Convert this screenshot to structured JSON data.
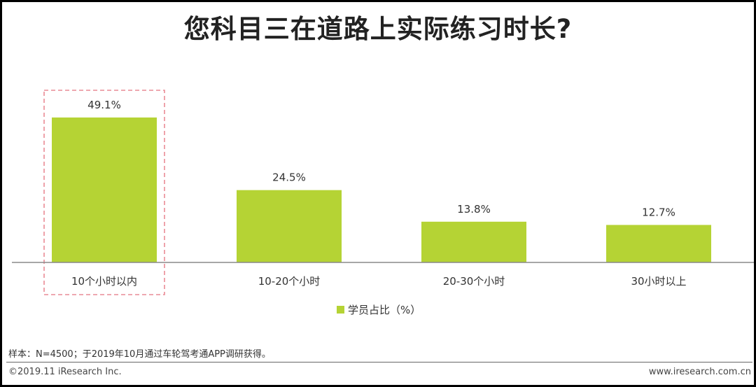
{
  "title": "您科目三在道路上实际练习时长?",
  "chart_data": {
    "type": "bar",
    "categories": [
      "10个小时以内",
      "10-20个小时",
      "20-30个小时",
      "30小时以上"
    ],
    "series": [
      {
        "name": "学员占比（%）",
        "values": [
          49.1,
          24.5,
          13.8,
          12.7
        ]
      }
    ],
    "value_labels": [
      "49.1%",
      "24.5%",
      "13.8%",
      "12.7%"
    ],
    "ylim": [
      0,
      55
    ],
    "grid": false,
    "legend_position": "bottom-center",
    "highlighted_category": "10个小时以内",
    "bar_color": "#b5d334",
    "highlight_color": "#e98b95"
  },
  "footer": {
    "note": "样本：N=4500；于2019年10月通过车轮驾考通APP调研获得。",
    "copyright": "©2019.11 iResearch Inc.",
    "website": "www.iresearch.com.cn"
  }
}
